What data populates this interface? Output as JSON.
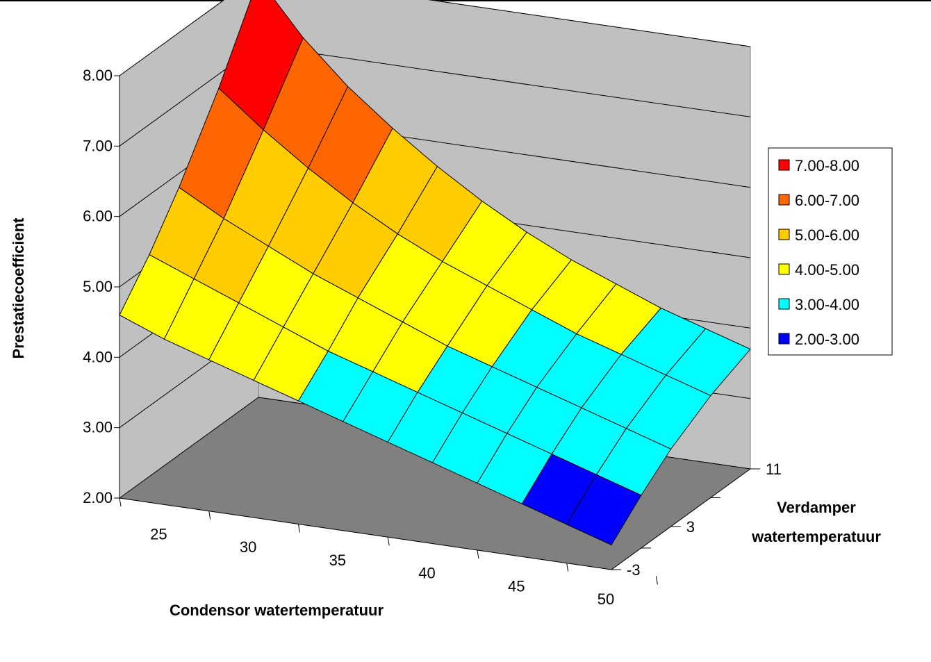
{
  "chart_data": {
    "type": "surface",
    "title": "",
    "xlabel": "Condensor watertemperatuur",
    "ylabel": "Prestatiecoefficient",
    "zlabel": "Verdamper watertemperatuur",
    "x": [
      22.5,
      25,
      27.5,
      30,
      32.5,
      35,
      37.5,
      40,
      42.5,
      45,
      47.5,
      50
    ],
    "x_tick_labels": [
      "25",
      "30",
      "35",
      "40",
      "45",
      "50"
    ],
    "z": [
      -3,
      0,
      3,
      7,
      11
    ],
    "z_tick_labels": [
      "-3",
      "3",
      "11"
    ],
    "ylim": [
      2,
      8
    ],
    "y_tick_labels": [
      "2.00",
      "3.00",
      "4.00",
      "5.00",
      "6.00",
      "7.00",
      "8.00"
    ],
    "values": [
      [
        4.6,
        4.35,
        4.15,
        3.95,
        3.75,
        3.55,
        3.35,
        3.15,
        2.95,
        2.75,
        2.55,
        2.35
      ],
      [
        5.15,
        4.9,
        4.65,
        4.4,
        4.15,
        3.95,
        3.75,
        3.55,
        3.35,
        3.15,
        2.95,
        2.75
      ],
      [
        5.8,
        5.45,
        5.15,
        4.85,
        4.6,
        4.35,
        4.1,
        3.9,
        3.7,
        3.5,
        3.3,
        3.1
      ],
      [
        6.8,
        6.3,
        5.85,
        5.45,
        5.1,
        4.8,
        4.55,
        4.3,
        4.05,
        3.85,
        3.65,
        3.45
      ],
      [
        7.95,
        7.2,
        6.6,
        6.1,
        5.65,
        5.25,
        4.9,
        4.6,
        4.35,
        4.1,
        3.9,
        3.7
      ]
    ],
    "legend": [
      {
        "label": "7.00-8.00",
        "color": "#ff0000"
      },
      {
        "label": "6.00-7.00",
        "color": "#ff6600"
      },
      {
        "label": "5.00-6.00",
        "color": "#ffcc00"
      },
      {
        "label": "4.00-5.00",
        "color": "#ffff00"
      },
      {
        "label": "3.00-4.00",
        "color": "#00ffff"
      },
      {
        "label": "2.00-3.00",
        "color": "#0000ff"
      }
    ],
    "legend_position": "right",
    "grid": true
  }
}
